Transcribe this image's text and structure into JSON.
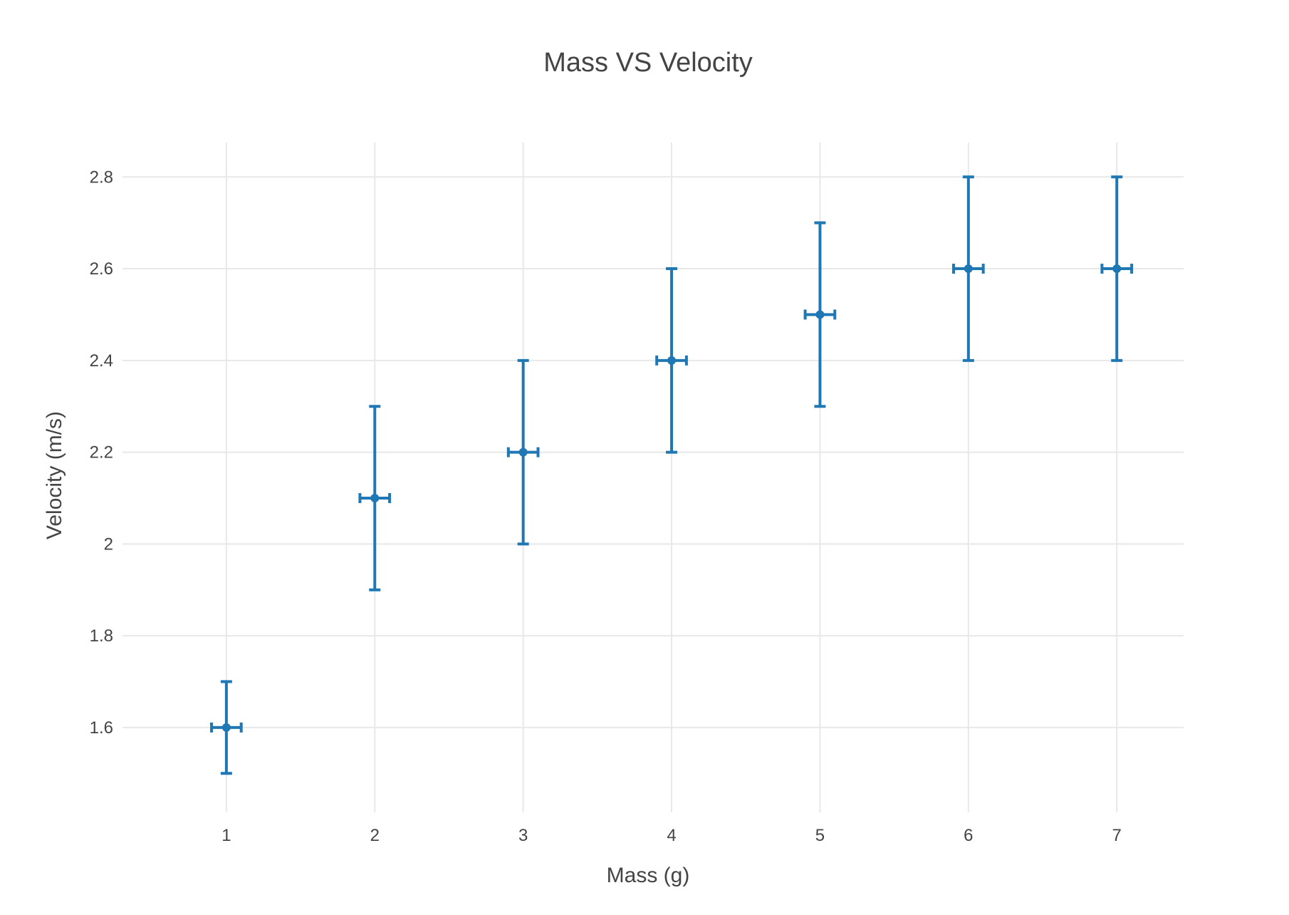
{
  "chart_data": {
    "type": "scatter",
    "title": "Mass VS Velocity",
    "xlabel": "Mass (g)",
    "ylabel": "Velocity (m/s)",
    "xlim": [
      0.3,
      7.45
    ],
    "ylim": [
      1.415,
      2.875
    ],
    "xticks": [
      1,
      2,
      3,
      4,
      5,
      6,
      7
    ],
    "xtick_labels": [
      "1",
      "2",
      "3",
      "4",
      "5",
      "6",
      "7"
    ],
    "yticks": [
      1.6,
      1.8,
      2.0,
      2.2,
      2.4,
      2.6,
      2.8
    ],
    "ytick_labels": [
      "1.6",
      "1.8",
      "2",
      "2.2",
      "2.4",
      "2.6",
      "2.8"
    ],
    "grid": true,
    "legend": "none",
    "color": "#1f77b4",
    "x": [
      1,
      2,
      3,
      4,
      5,
      6,
      7
    ],
    "y": [
      1.6,
      2.1,
      2.2,
      2.4,
      2.5,
      2.6,
      2.6
    ],
    "x_error": [
      0.1,
      0.1,
      0.1,
      0.1,
      0.1,
      0.1,
      0.1
    ],
    "y_error": [
      0.1,
      0.2,
      0.2,
      0.2,
      0.2,
      0.2,
      0.2
    ]
  }
}
